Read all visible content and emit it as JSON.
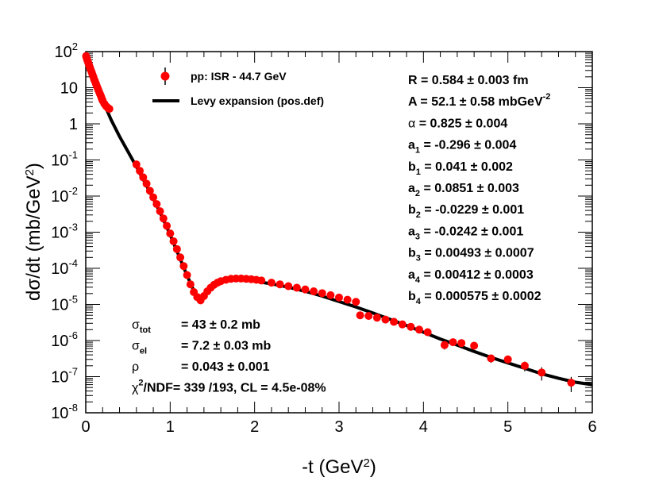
{
  "chart_data": {
    "type": "scatter",
    "title": "",
    "xlabel": "-t (GeV",
    "xlabel_sup": "2",
    "xlabel_tail": ")",
    "ylabel": "dσ/dt (mb/GeV",
    "ylabel_sup": "2",
    "ylabel_tail": ")",
    "xlim": [
      0,
      6
    ],
    "ylim_log10": [
      -8,
      2
    ],
    "x_ticks": [
      "0",
      "1",
      "2",
      "3",
      "4",
      "5",
      "6"
    ],
    "y_ticks": [
      {
        "base": "10",
        "exp": "-8"
      },
      {
        "base": "10",
        "exp": "-7"
      },
      {
        "base": "10",
        "exp": "-6"
      },
      {
        "base": "10",
        "exp": "-5"
      },
      {
        "base": "10",
        "exp": "-4"
      },
      {
        "base": "10",
        "exp": "-3"
      },
      {
        "base": "10",
        "exp": "-2"
      },
      {
        "base": "10",
        "exp": "-1"
      },
      {
        "base": "1",
        "exp": ""
      },
      {
        "base": "10",
        "exp": ""
      },
      {
        "base": "10",
        "exp": "2"
      }
    ],
    "legend": [
      {
        "label": "pp: ISR - 44.7 GeV",
        "marker": "circle-errorbar",
        "color": "#ff0000"
      },
      {
        "label": "Levy expansion (pos.def)",
        "marker": "line",
        "color": "#000000"
      }
    ],
    "parameters": [
      {
        "name": "R",
        "sub": "",
        "value": " = 0.584 ± 0.003 fm",
        "unit_sup": ""
      },
      {
        "name": "A",
        "sub": "",
        "value": " = 52.1 ± 0.58 mbGeV",
        "unit_sup": "-2"
      },
      {
        "name": "α",
        "sub": "",
        "value": " = 0.825 ± 0.004",
        "unit_sup": ""
      },
      {
        "name": "a",
        "sub": "1",
        "value": " = -0.296 ± 0.004",
        "unit_sup": ""
      },
      {
        "name": "b",
        "sub": "1",
        "value": " = 0.041 ± 0.002",
        "unit_sup": ""
      },
      {
        "name": "a",
        "sub": "2",
        "value": " = 0.0851 ± 0.003",
        "unit_sup": ""
      },
      {
        "name": "b",
        "sub": "2",
        "value": " = -0.0229 ± 0.001",
        "unit_sup": ""
      },
      {
        "name": "a",
        "sub": "3",
        "value": " = -0.0242 ± 0.001",
        "unit_sup": ""
      },
      {
        "name": "b",
        "sub": "3",
        "value": " = 0.00493 ± 0.0007",
        "unit_sup": ""
      },
      {
        "name": "a",
        "sub": "4",
        "value": " = 0.00412 ± 0.0003",
        "unit_sup": ""
      },
      {
        "name": "b",
        "sub": "4",
        "value": " = 0.000575 ± 0.0002",
        "unit_sup": ""
      }
    ],
    "fit_info": [
      {
        "name": "σ",
        "sub": "tot",
        "sup": "",
        "value": "= 43 ± 0.2 mb"
      },
      {
        "name": "σ",
        "sub": "el",
        "sup": "",
        "value": "= 7.2 ± 0.03 mb"
      },
      {
        "name": "ρ",
        "sub": "",
        "sup": "",
        "value": "= 0.043 ± 0.001"
      },
      {
        "name": "χ",
        "sub": "",
        "sup": "2",
        "value": "/NDF= 339 /193,  CL = 4.5e-08%"
      }
    ],
    "series": [
      {
        "name": "pp: ISR - 44.7 GeV",
        "color": "#ff0000",
        "points": [
          [
            0.004,
            75
          ],
          [
            0.01,
            68
          ],
          [
            0.015,
            62
          ],
          [
            0.02,
            57
          ],
          [
            0.03,
            49
          ],
          [
            0.04,
            42
          ],
          [
            0.05,
            36
          ],
          [
            0.06,
            31
          ],
          [
            0.07,
            27
          ],
          [
            0.08,
            23
          ],
          [
            0.09,
            20
          ],
          [
            0.1,
            17
          ],
          [
            0.11,
            15
          ],
          [
            0.12,
            13
          ],
          [
            0.13,
            11.2
          ],
          [
            0.14,
            9.8
          ],
          [
            0.15,
            8.6
          ],
          [
            0.16,
            7.5
          ],
          [
            0.17,
            6.6
          ],
          [
            0.18,
            5.8
          ],
          [
            0.19,
            5.0
          ],
          [
            0.2,
            4.4
          ],
          [
            0.22,
            3.6
          ],
          [
            0.24,
            3.1
          ],
          [
            0.26,
            2.8
          ],
          [
            0.28,
            2.6
          ],
          [
            0.6,
            0.075
          ],
          [
            0.64,
            0.05
          ],
          [
            0.68,
            0.033
          ],
          [
            0.72,
            0.022
          ],
          [
            0.76,
            0.014
          ],
          [
            0.8,
            0.0092
          ],
          [
            0.84,
            0.006
          ],
          [
            0.88,
            0.0038
          ],
          [
            0.92,
            0.0024
          ],
          [
            0.96,
            0.0015
          ],
          [
            1.0,
            0.00092
          ],
          [
            1.04,
            0.00056
          ],
          [
            1.08,
            0.00034
          ],
          [
            1.12,
            0.0002
          ],
          [
            1.16,
            0.000115
          ],
          [
            1.2,
            6.5e-05
          ],
          [
            1.24,
            3.6e-05
          ],
          [
            1.28,
            2.2e-05
          ],
          [
            1.32,
            1.6e-05
          ],
          [
            1.36,
            1.3e-05
          ],
          [
            1.4,
            1.7e-05
          ],
          [
            1.44,
            2.3e-05
          ],
          [
            1.48,
            2.9e-05
          ],
          [
            1.52,
            3.5e-05
          ],
          [
            1.56,
            4e-05
          ],
          [
            1.6,
            4.4e-05
          ],
          [
            1.66,
            4.8e-05
          ],
          [
            1.72,
            5.1e-05
          ],
          [
            1.78,
            5.2e-05
          ],
          [
            1.84,
            5.2e-05
          ],
          [
            1.9,
            5.1e-05
          ],
          [
            1.96,
            5e-05
          ],
          [
            2.02,
            4.8e-05
          ],
          [
            2.08,
            4.6e-05
          ],
          [
            2.2,
            4e-05
          ],
          [
            2.3,
            3.6e-05
          ],
          [
            2.4,
            3.2e-05
          ],
          [
            2.5,
            2.9e-05
          ],
          [
            2.6,
            2.6e-05
          ],
          [
            2.7,
            2.3e-05
          ],
          [
            2.8,
            2.05e-05
          ],
          [
            2.9,
            1.8e-05
          ],
          [
            3.0,
            1.55e-05
          ],
          [
            3.1,
            1.35e-05
          ],
          [
            3.2,
            1.18e-05
          ],
          [
            3.25,
            5e-06
          ],
          [
            3.35,
            4.8e-06
          ],
          [
            3.45,
            4.3e-06
          ],
          [
            3.55,
            3.8e-06
          ],
          [
            3.65,
            3.3e-06
          ],
          [
            3.75,
            2.8e-06
          ],
          [
            3.85,
            2.4e-06
          ],
          [
            3.95,
            2e-06
          ],
          [
            4.05,
            1.7e-06
          ],
          [
            4.25,
            7.5e-07
          ],
          [
            4.35,
            9e-07
          ],
          [
            4.45,
            8.5e-07
          ],
          [
            4.6,
            7.2e-07
          ],
          [
            4.8,
            3.2e-07
          ],
          [
            5.0,
            3e-07
          ],
          [
            5.2,
            2e-07
          ],
          [
            5.4,
            1.3e-07
          ],
          [
            5.75,
            6.8e-08
          ]
        ],
        "errors": [
          [
            4.25,
            0.25
          ],
          [
            4.8,
            0.25
          ],
          [
            5.0,
            0.25
          ],
          [
            5.2,
            0.3
          ],
          [
            5.4,
            0.4
          ],
          [
            5.75,
            0.45
          ]
        ]
      }
    ],
    "fit_curve": {
      "name": "Levy expansion (pos.def)",
      "color": "#000000",
      "points": [
        [
          0.0,
          72
        ],
        [
          0.05,
          36
        ],
        [
          0.1,
          18
        ],
        [
          0.2,
          4.5
        ],
        [
          0.3,
          1.3
        ],
        [
          0.4,
          0.45
        ],
        [
          0.5,
          0.17
        ],
        [
          0.6,
          0.065
        ],
        [
          0.7,
          0.024
        ],
        [
          0.8,
          0.0085
        ],
        [
          0.9,
          0.0028
        ],
        [
          1.0,
          0.00085
        ],
        [
          1.1,
          0.00023
        ],
        [
          1.2,
          6.3e-05
        ],
        [
          1.28,
          2.4e-05
        ],
        [
          1.33,
          1.5e-05
        ],
        [
          1.37,
          1.4e-05
        ],
        [
          1.42,
          1.8e-05
        ],
        [
          1.5,
          3e-05
        ],
        [
          1.6,
          4.1e-05
        ],
        [
          1.7,
          4.8e-05
        ],
        [
          1.8,
          5e-05
        ],
        [
          1.9,
          4.8e-05
        ],
        [
          2.0,
          4.4e-05
        ],
        [
          2.2,
          3.7e-05
        ],
        [
          2.4,
          3e-05
        ],
        [
          2.6,
          2.3e-05
        ],
        [
          2.8,
          1.7e-05
        ],
        [
          3.0,
          1.2e-05
        ],
        [
          3.2,
          8.5e-06
        ],
        [
          3.4,
          5.8e-06
        ],
        [
          3.6,
          3.9e-06
        ],
        [
          3.8,
          2.6e-06
        ],
        [
          4.0,
          1.7e-06
        ],
        [
          4.2,
          1.1e-06
        ],
        [
          4.4,
          7.5e-07
        ],
        [
          4.6,
          5e-07
        ],
        [
          4.8,
          3.4e-07
        ],
        [
          5.0,
          2.4e-07
        ],
        [
          5.2,
          1.7e-07
        ],
        [
          5.4,
          1.2e-07
        ],
        [
          5.6,
          9e-08
        ],
        [
          5.8,
          7e-08
        ],
        [
          6.0,
          6e-08
        ]
      ]
    }
  }
}
